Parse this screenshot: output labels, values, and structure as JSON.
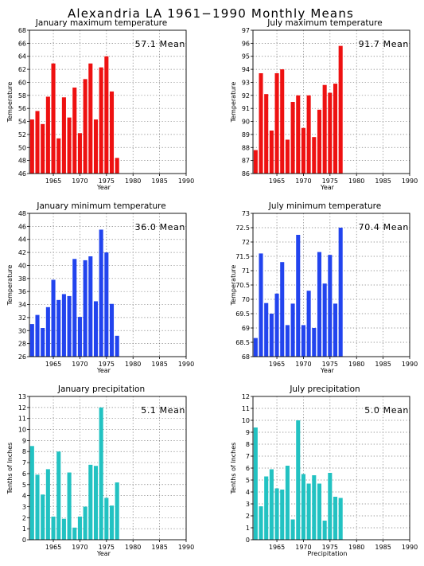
{
  "page": {
    "title": "Alexandria LA   1961−1990 Monthly Means"
  },
  "chart_data": [
    {
      "type": "bar",
      "title": "January maximum temperature",
      "xlabel": "Year",
      "ylabel": "Temperature",
      "mean_text": "57.1  Mean",
      "color": "#ee1111",
      "x": [
        1961,
        1962,
        1963,
        1964,
        1965,
        1966,
        1967,
        1968,
        1969,
        1970,
        1971,
        1972,
        1973,
        1974,
        1975,
        1976,
        1977
      ],
      "values": [
        54.3,
        55.6,
        53.6,
        57.8,
        62.9,
        51.4,
        57.7,
        54.6,
        59.2,
        52.2,
        60.5,
        62.9,
        54.3,
        62.3,
        64.0,
        58.6,
        48.4
      ],
      "xlim": [
        1960.5,
        1990
      ],
      "ylim": [
        46,
        68
      ],
      "xticks": [
        1965,
        1970,
        1975,
        1980,
        1985,
        1990
      ],
      "yticks": [
        46,
        48,
        50,
        52,
        54,
        56,
        58,
        60,
        62,
        64,
        66,
        68
      ],
      "ytick_labels": [
        "46",
        "48",
        "50",
        "52",
        "54",
        "56",
        "58",
        "60",
        "62",
        "64",
        "66",
        "68"
      ],
      "grid": true
    },
    {
      "type": "bar",
      "title": "July maximum temperature",
      "xlabel": "Year",
      "ylabel": "Temperature",
      "mean_text": "91.7  Mean",
      "color": "#ee1111",
      "x": [
        1961,
        1962,
        1963,
        1964,
        1965,
        1966,
        1967,
        1968,
        1969,
        1970,
        1971,
        1972,
        1973,
        1974,
        1975,
        1976,
        1977
      ],
      "values": [
        87.8,
        93.7,
        92.1,
        89.3,
        93.7,
        94.0,
        88.6,
        91.5,
        92.0,
        89.5,
        92.0,
        88.8,
        90.9,
        92.8,
        92.2,
        92.9,
        95.8
      ],
      "xlim": [
        1960.5,
        1990
      ],
      "ylim": [
        86,
        97
      ],
      "xticks": [
        1965,
        1970,
        1975,
        1980,
        1985,
        1990
      ],
      "yticks": [
        86,
        87,
        88,
        89,
        90,
        91,
        92,
        93,
        94,
        95,
        96,
        97
      ],
      "ytick_labels": [
        "86",
        "87",
        "88",
        "89",
        "90",
        "91",
        "92",
        "93",
        "94",
        "95",
        "96",
        "97"
      ],
      "grid": true
    },
    {
      "type": "bar",
      "title": "January minimum temperature",
      "xlabel": "Year",
      "ylabel": "Temperature",
      "mean_text": "36.0  Mean",
      "color": "#2244ee",
      "x": [
        1961,
        1962,
        1963,
        1964,
        1965,
        1966,
        1967,
        1968,
        1969,
        1970,
        1971,
        1972,
        1973,
        1974,
        1975,
        1976,
        1977
      ],
      "values": [
        31.0,
        32.4,
        30.4,
        33.6,
        37.8,
        34.7,
        35.6,
        35.3,
        41.0,
        32.1,
        40.8,
        41.4,
        34.5,
        45.5,
        42.0,
        34.1,
        29.2
      ],
      "xlim": [
        1960.5,
        1990
      ],
      "ylim": [
        26,
        48
      ],
      "xticks": [
        1965,
        1970,
        1975,
        1980,
        1985,
        1990
      ],
      "yticks": [
        26,
        28,
        30,
        32,
        34,
        36,
        38,
        40,
        42,
        44,
        46,
        48
      ],
      "ytick_labels": [
        "26",
        "28",
        "30",
        "32",
        "34",
        "36",
        "38",
        "40",
        "42",
        "44",
        "46",
        "48"
      ],
      "grid": true
    },
    {
      "type": "bar",
      "title": "July minimum temperature",
      "xlabel": "Year",
      "ylabel": "Temperature",
      "mean_text": "70.4  Mean",
      "color": "#2244ee",
      "x": [
        1961,
        1962,
        1963,
        1964,
        1965,
        1966,
        1967,
        1968,
        1969,
        1970,
        1971,
        1972,
        1973,
        1974,
        1975,
        1976,
        1977
      ],
      "values": [
        68.65,
        71.6,
        69.87,
        69.5,
        70.2,
        71.3,
        69.1,
        69.85,
        72.25,
        69.1,
        70.3,
        69.0,
        71.65,
        70.55,
        71.55,
        69.85,
        72.5
      ],
      "xlim": [
        1960.5,
        1990
      ],
      "ylim": [
        68,
        73
      ],
      "xticks": [
        1965,
        1970,
        1975,
        1980,
        1985,
        1990
      ],
      "yticks": [
        68,
        68.5,
        69,
        69.5,
        70,
        70.5,
        71,
        71.5,
        72,
        72.5,
        73
      ],
      "ytick_labels": [
        "68",
        "68.5",
        "69",
        "69.5",
        "70",
        "70.5",
        "71",
        "71.5",
        "72",
        "72.5",
        "73"
      ],
      "grid": true
    },
    {
      "type": "bar",
      "title": "January precipitation",
      "xlabel": "Year",
      "ylabel": "Tenths of Inches",
      "mean_text": "5.1  Mean",
      "color": "#22c2c2",
      "x": [
        1961,
        1962,
        1963,
        1964,
        1965,
        1966,
        1967,
        1968,
        1969,
        1970,
        1971,
        1972,
        1973,
        1974,
        1975,
        1976,
        1977
      ],
      "values": [
        8.5,
        5.9,
        4.1,
        6.4,
        2.1,
        8.0,
        1.9,
        6.1,
        1.1,
        2.1,
        3.0,
        6.8,
        6.7,
        12.0,
        3.8,
        3.1,
        5.2
      ],
      "xlim": [
        1960.5,
        1990
      ],
      "ylim": [
        0,
        13
      ],
      "xticks": [
        1965,
        1970,
        1975,
        1980,
        1985,
        1990
      ],
      "yticks": [
        0,
        1,
        2,
        3,
        4,
        5,
        6,
        7,
        8,
        9,
        10,
        11,
        12,
        13
      ],
      "ytick_labels": [
        "0",
        "1",
        "2",
        "3",
        "4",
        "5",
        "6",
        "7",
        "8",
        "9",
        "10",
        "11",
        "12",
        "13"
      ],
      "grid": true
    },
    {
      "type": "bar",
      "title": "July precipitation",
      "xlabel": "Precipitation",
      "ylabel": "Tenths of Inches",
      "mean_text": "5.0  Mean",
      "color": "#22c2c2",
      "x": [
        1961,
        1962,
        1963,
        1964,
        1965,
        1966,
        1967,
        1968,
        1969,
        1970,
        1971,
        1972,
        1973,
        1974,
        1975,
        1976,
        1977
      ],
      "values": [
        9.4,
        2.8,
        5.3,
        5.9,
        4.3,
        4.2,
        6.2,
        1.7,
        10.0,
        5.5,
        4.7,
        5.4,
        4.7,
        1.6,
        5.6,
        3.6,
        3.5
      ],
      "xlim": [
        1960.5,
        1990
      ],
      "ylim": [
        0,
        12
      ],
      "xticks": [
        1965,
        1970,
        1975,
        1980,
        1985,
        1990
      ],
      "yticks": [
        0,
        1,
        2,
        3,
        4,
        5,
        6,
        7,
        8,
        9,
        10,
        11,
        12
      ],
      "ytick_labels": [
        "0",
        "1",
        "2",
        "3",
        "4",
        "5",
        "6",
        "7",
        "8",
        "9",
        "10",
        "11",
        "12"
      ],
      "grid": true
    }
  ]
}
